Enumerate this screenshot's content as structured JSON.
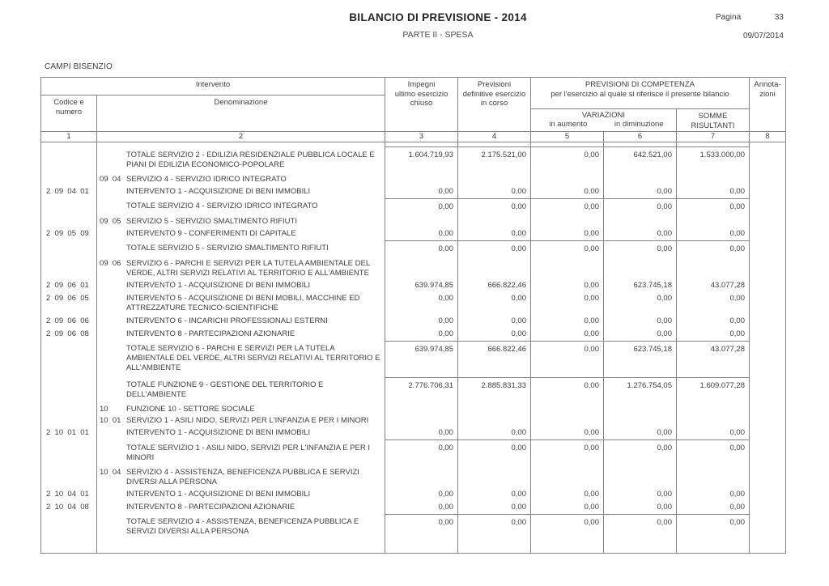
{
  "page": {
    "title": "BILANCIO DI PREVISIONE - 2014",
    "subtitle": "PARTE II - SPESA",
    "page_label": "Pagina",
    "page_number": "33",
    "date": "09/07/2014",
    "entity": "CAMPI BISENZIO"
  },
  "table": {
    "header": {
      "intervento": "Intervento",
      "codice_lines": [
        "Codice e",
        "numero"
      ],
      "denominazione": "Denominazione",
      "impegni_lines": [
        "Impegni",
        "ultimo esercizio",
        "chiuso"
      ],
      "previsioni_lines": [
        "Previsioni",
        "definitive esercizio",
        "in corso"
      ],
      "competenza_lines": [
        "PREVISIONI DI COMPETENZA",
        "per l'esercizio al quale si riferisce il presente bilancio"
      ],
      "variazioni": "VARIAZIONI",
      "in_aumento": "in aumento",
      "in_diminuzione": "in diminuzione",
      "somme_lines": [
        "SOMME",
        "RISULTANTI"
      ],
      "annotazioni_lines": [
        "Annota-",
        "zioni"
      ],
      "column_numbers": [
        "1",
        "2",
        "3",
        "4",
        "5",
        "6",
        "7",
        "8"
      ]
    },
    "rows": [
      {
        "type": "total",
        "desc": "TOTALE SERVIZIO 2 - EDILIZIA RESIDENZIALE PUBBLICA LOCALE E PIANI DI EDILIZIA ECONOMICO-POPOLARE",
        "values": [
          "1.604.719,93",
          "2.175.521,00",
          "0,00",
          "642.521,00",
          "1.533.000,00"
        ]
      },
      {
        "type": "heading",
        "code2": "09  04",
        "desc": "SERVIZIO 4 - SERVIZIO IDRICO INTEGRATO"
      },
      {
        "type": "item",
        "code": "2  09  04  01",
        "desc": "INTERVENTO 1 - ACQUISIZIONE DI BENI IMMOBILI",
        "values": [
          "0,00",
          "0,00",
          "0,00",
          "0,00",
          "0,00"
        ]
      },
      {
        "type": "total",
        "desc": "TOTALE SERVIZIO 4 - SERVIZIO IDRICO INTEGRATO",
        "values": [
          "0,00",
          "0,00",
          "0,00",
          "0,00",
          "0,00"
        ]
      },
      {
        "type": "heading",
        "code2": "09  05",
        "desc": "SERVIZIO 5 - SERVIZIO SMALTIMENTO RIFIUTI"
      },
      {
        "type": "item",
        "code": "2  09  05  09",
        "desc": "INTERVENTO 9 - CONFERIMENTI DI CAPITALE",
        "values": [
          "0,00",
          "0,00",
          "0,00",
          "0,00",
          "0,00"
        ]
      },
      {
        "type": "total",
        "desc": "TOTALE SERVIZIO 5 - SERVIZIO SMALTIMENTO RIFIUTI",
        "values": [
          "0,00",
          "0,00",
          "0,00",
          "0,00",
          "0,00"
        ]
      },
      {
        "type": "heading",
        "code2": "09  06",
        "desc": "SERVIZIO 6 - PARCHI E SERVIZI PER LA TUTELA AMBIENTALE DEL VERDE, ALTRI SERVIZI RELATIVI AL TERRITORIO E ALL'AMBIENTE"
      },
      {
        "type": "item",
        "code": "2  09  06  01",
        "desc": "INTERVENTO 1 - ACQUISIZIONE DI BENI IMMOBILI",
        "values": [
          "639.974,85",
          "666.822,46",
          "0,00",
          "623.745,18",
          "43.077,28"
        ]
      },
      {
        "type": "item",
        "code": "2  09  06  05",
        "desc": "INTERVENTO 5 - ACQUISIZIONE DI BENI MOBILI, MACCHINE ED ATTREZZATURE TECNICO-SCIENTIFICHE",
        "values": [
          "0,00",
          "0,00",
          "0,00",
          "0,00",
          "0,00"
        ]
      },
      {
        "type": "item",
        "code": "2  09  06  06",
        "desc": "INTERVENTO 6 - INCARICHI PROFESSIONALI ESTERNI",
        "values": [
          "0,00",
          "0,00",
          "0,00",
          "0,00",
          "0,00"
        ]
      },
      {
        "type": "item",
        "code": "2  09  06  08",
        "desc": "INTERVENTO 8 - PARTECIPAZIONI AZIONARIE",
        "values": [
          "0,00",
          "0,00",
          "0,00",
          "0,00",
          "0,00"
        ]
      },
      {
        "type": "total",
        "desc": "TOTALE SERVIZIO 6 - PARCHI E SERVIZI PER LA TUTELA AMBIENTALE DEL VERDE, ALTRI SERVIZI RELATIVI AL TERRITORIO E ALL'AMBIENTE",
        "values": [
          "639.974,85",
          "666.822,46",
          "0,00",
          "623.745,18",
          "43.077,28"
        ]
      },
      {
        "type": "total",
        "desc": "TOTALE FUNZIONE 9 - GESTIONE DEL TERRITORIO E DELL'AMBIENTE",
        "values": [
          "2.776.706,31",
          "2.885.831,33",
          "0,00",
          "1.276.754,05",
          "1.609.077,28"
        ]
      },
      {
        "type": "heading",
        "code2": "10",
        "desc": "FUNZIONE 10 - SETTORE SOCIALE"
      },
      {
        "type": "heading",
        "code2": "10  01",
        "desc": "SERVIZIO 1 - ASILI NIDO, SERVIZI PER L'INFANZIA E PER I MINORI"
      },
      {
        "type": "item",
        "code": "2  10  01  01",
        "desc": "INTERVENTO 1 - ACQUISIZIONE DI BENI IMMOBILI",
        "values": [
          "0,00",
          "0,00",
          "0,00",
          "0,00",
          "0,00"
        ]
      },
      {
        "type": "total",
        "desc": "TOTALE SERVIZIO 1 - ASILI NIDO, SERVIZI PER L'INFANZIA E PER I MINORI",
        "values": [
          "0,00",
          "0,00",
          "0,00",
          "0,00",
          "0,00"
        ]
      },
      {
        "type": "heading",
        "code2": "10  04",
        "desc": "SERVIZIO 4 - ASSISTENZA, BENEFICENZA PUBBLICA E SERVIZI DIVERSI ALLA PERSONA"
      },
      {
        "type": "item",
        "code": "2  10  04  01",
        "desc": "INTERVENTO 1 - ACQUISIZIONE DI BENI IMMOBILI",
        "values": [
          "0,00",
          "0,00",
          "0,00",
          "0,00",
          "0,00"
        ]
      },
      {
        "type": "item",
        "code": "2  10  04  08",
        "desc": "INTERVENTO 8 - PARTECIPAZIONI AZIONARIE",
        "values": [
          "0,00",
          "0,00",
          "0,00",
          "0,00",
          "0,00"
        ]
      },
      {
        "type": "total",
        "desc": "TOTALE SERVIZIO 4 - ASSISTENZA, BENEFICENZA PUBBLICA E SERVIZI DIVERSI ALLA PERSONA",
        "values": [
          "0,00",
          "0,00",
          "0,00",
          "0,00",
          "0,00"
        ]
      }
    ]
  }
}
